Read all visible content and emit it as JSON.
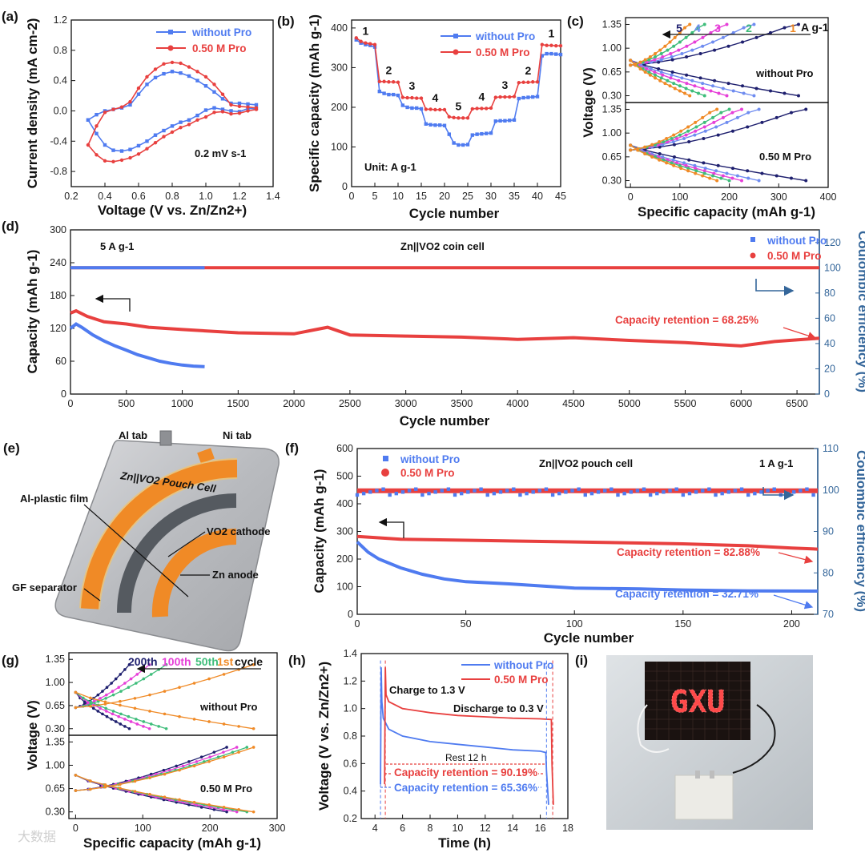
{
  "figure": {
    "panel_labels": [
      "(a)",
      "(b)",
      "(c)",
      "(d)",
      "(e)",
      "(f)",
      "(g)",
      "(h)",
      "(i)"
    ],
    "watermark": "大数据"
  },
  "chart_data": [
    {
      "id": "a",
      "type": "line",
      "title": "",
      "xlabel": "Voltage (V vs. Zn/Zn2+)",
      "ylabel": "Current density (mA cm-2)",
      "xlim": [
        0.2,
        1.4
      ],
      "ylim": [
        -1.0,
        1.2
      ],
      "xticks": [
        "0.2",
        "0.4",
        "0.6",
        "0.8",
        "1.0",
        "1.2",
        "1.4"
      ],
      "yticks": [
        "-0.8",
        "-0.4",
        "0.0",
        "0.4",
        "0.8",
        "1.2"
      ],
      "annotation": "0.2 mV s-1",
      "legend": [
        "without Pro",
        "0.50 M Pro"
      ],
      "series": [
        {
          "name": "without Pro",
          "color": "#4f7bf0",
          "x": [
            0.3,
            0.35,
            0.4,
            0.45,
            0.5,
            0.55,
            0.6,
            0.65,
            0.7,
            0.75,
            0.8,
            0.85,
            0.9,
            0.95,
            1.0,
            1.05,
            1.1,
            1.15,
            1.2,
            1.25,
            1.3,
            1.3,
            1.25,
            1.2,
            1.15,
            1.1,
            1.05,
            1.0,
            0.95,
            0.9,
            0.85,
            0.8,
            0.75,
            0.7,
            0.65,
            0.6,
            0.55,
            0.5,
            0.45,
            0.4,
            0.35,
            0.3
          ],
          "y": [
            -0.12,
            -0.05,
            0.0,
            0.02,
            0.04,
            0.08,
            0.22,
            0.35,
            0.44,
            0.49,
            0.52,
            0.5,
            0.46,
            0.4,
            0.33,
            0.25,
            0.16,
            0.1,
            0.1,
            0.09,
            0.08,
            0.03,
            0.03,
            -0.01,
            0.0,
            0.02,
            0.04,
            0.01,
            -0.06,
            -0.12,
            -0.15,
            -0.2,
            -0.26,
            -0.32,
            -0.4,
            -0.46,
            -0.51,
            -0.53,
            -0.52,
            -0.45,
            -0.3,
            -0.12
          ]
        },
        {
          "name": "0.50 M Pro",
          "color": "#e8403f",
          "x": [
            0.3,
            0.35,
            0.4,
            0.45,
            0.5,
            0.55,
            0.6,
            0.65,
            0.7,
            0.75,
            0.8,
            0.85,
            0.9,
            0.95,
            1.0,
            1.05,
            1.1,
            1.15,
            1.2,
            1.25,
            1.3,
            1.3,
            1.25,
            1.2,
            1.15,
            1.1,
            1.05,
            1.0,
            0.95,
            0.9,
            0.85,
            0.8,
            0.75,
            0.7,
            0.65,
            0.6,
            0.55,
            0.5,
            0.45,
            0.4,
            0.35,
            0.3
          ],
          "y": [
            -0.45,
            -0.2,
            -0.02,
            0.02,
            0.05,
            0.12,
            0.3,
            0.45,
            0.55,
            0.62,
            0.64,
            0.63,
            0.58,
            0.52,
            0.45,
            0.35,
            0.22,
            0.08,
            0.06,
            0.05,
            0.04,
            0.02,
            0.0,
            -0.03,
            -0.04,
            -0.01,
            -0.02,
            -0.08,
            -0.12,
            -0.18,
            -0.22,
            -0.28,
            -0.34,
            -0.42,
            -0.5,
            -0.57,
            -0.62,
            -0.65,
            -0.67,
            -0.66,
            -0.58,
            -0.45
          ]
        }
      ]
    },
    {
      "id": "b",
      "type": "line",
      "xlabel": "Cycle number",
      "ylabel": "Specific capacity (mAh g-1)",
      "xlim": [
        0,
        45
      ],
      "ylim": [
        0,
        420
      ],
      "xticks": [
        "0",
        "5",
        "10",
        "15",
        "20",
        "25",
        "30",
        "35",
        "40",
        "45"
      ],
      "yticks": [
        "0",
        "100",
        "200",
        "300",
        "400"
      ],
      "rate_labels": [
        "1",
        "2",
        "3",
        "4",
        "5",
        "4",
        "3",
        "2",
        "1"
      ],
      "annotation": "Unit: A g-1",
      "legend": [
        "without Pro",
        "0.50 M Pro"
      ],
      "series": [
        {
          "name": "without Pro",
          "color": "#4f7bf0",
          "x": [
            1,
            2,
            3,
            4,
            5,
            6,
            7,
            8,
            9,
            10,
            11,
            12,
            13,
            14,
            15,
            16,
            17,
            18,
            19,
            20,
            21,
            22,
            23,
            24,
            25,
            26,
            27,
            28,
            29,
            30,
            31,
            32,
            33,
            34,
            35,
            36,
            37,
            38,
            39,
            40,
            41,
            42,
            43,
            44,
            45
          ],
          "y": [
            370,
            362,
            358,
            356,
            352,
            240,
            235,
            232,
            232,
            230,
            205,
            200,
            198,
            198,
            196,
            158,
            156,
            155,
            155,
            154,
            132,
            110,
            105,
            105,
            106,
            130,
            132,
            133,
            134,
            135,
            165,
            166,
            166,
            167,
            168,
            222,
            224,
            225,
            226,
            227,
            330,
            335,
            335,
            334,
            333
          ]
        },
        {
          "name": "0.50 M Pro",
          "color": "#e8403f",
          "x": [
            1,
            2,
            3,
            4,
            5,
            6,
            7,
            8,
            9,
            10,
            11,
            12,
            13,
            14,
            15,
            16,
            17,
            18,
            19,
            20,
            21,
            22,
            23,
            24,
            25,
            26,
            27,
            28,
            29,
            30,
            31,
            32,
            33,
            34,
            35,
            36,
            37,
            38,
            39,
            40,
            41,
            42,
            43,
            44,
            45
          ],
          "y": [
            375,
            366,
            362,
            360,
            358,
            265,
            265,
            264,
            264,
            263,
            225,
            224,
            224,
            223,
            223,
            195,
            195,
            194,
            194,
            194,
            176,
            174,
            173,
            173,
            173,
            196,
            197,
            197,
            197,
            198,
            225,
            226,
            226,
            226,
            227,
            262,
            263,
            263,
            264,
            264,
            358,
            356,
            356,
            355,
            355
          ]
        }
      ]
    },
    {
      "id": "c",
      "type": "line",
      "xlabel": "Specific capacity (mAh g-1)",
      "ylabel": "Voltage (V)",
      "xlim": [
        -10,
        400
      ],
      "ylim": [
        0.2,
        1.45
      ],
      "xticks": [
        "0",
        "100",
        "200",
        "300",
        "400"
      ],
      "yticks": [
        "0.30",
        "0.65",
        "1.00",
        "1.35"
      ],
      "rate_labels": [
        "5",
        "4",
        "3",
        "2",
        "1"
      ],
      "rate_unit": "A g-1",
      "subpanel_labels": [
        "without Pro",
        "0.50 M Pro"
      ],
      "rate_colors": [
        "#1e1f6e",
        "#6f8cf0",
        "#e63fd8",
        "#3ebd7a",
        "#f08a26"
      ],
      "capacities_without_pro": [
        120,
        150,
        195,
        250,
        340
      ],
      "capacities_050M_pro": [
        175,
        200,
        225,
        260,
        355
      ]
    },
    {
      "id": "d",
      "type": "line",
      "xlabel": "Cycle number",
      "ylabel": "Capacity (mAh g-1)",
      "y2label": "Coulombic efficiency (%)",
      "xlim": [
        0,
        6700
      ],
      "ylim": [
        0,
        300
      ],
      "y2lim": [
        0,
        130
      ],
      "xticks": [
        "0",
        "500",
        "1000",
        "1500",
        "2000",
        "2500",
        "3000",
        "3500",
        "4000",
        "4500",
        "5000",
        "5500",
        "6000",
        "6500"
      ],
      "yticks": [
        "0",
        "60",
        "120",
        "180",
        "240",
        "300"
      ],
      "y2ticks": [
        "0",
        "20",
        "40",
        "60",
        "80",
        "100",
        "120"
      ],
      "rate": "5 A g-1",
      "cell": "Zn||VO2 coin cell",
      "retention_label": "Capacity retention = 68.25%",
      "legend": [
        "without Pro",
        "0.50 M Pro"
      ],
      "series": [
        {
          "name": "without Pro capacity",
          "color": "#4f7bf0",
          "x": [
            0,
            50,
            100,
            200,
            300,
            400,
            500,
            600,
            700,
            800,
            900,
            1000,
            1100,
            1200
          ],
          "y": [
            120,
            128,
            122,
            108,
            97,
            88,
            80,
            72,
            66,
            60,
            56,
            53,
            51,
            50
          ]
        },
        {
          "name": "0.50 M Pro capacity",
          "color": "#e8403f",
          "x": [
            0,
            50,
            150,
            300,
            500,
            700,
            1000,
            1500,
            2000,
            2300,
            2500,
            3000,
            3500,
            4000,
            4500,
            5000,
            5500,
            6000,
            6300,
            6700
          ],
          "y": [
            148,
            152,
            142,
            132,
            128,
            122,
            118,
            112,
            110,
            122,
            108,
            106,
            104,
            100,
            103,
            98,
            94,
            88,
            96,
            102
          ]
        },
        {
          "name": "without Pro CE",
          "color": "#4f7bf0",
          "x": [
            0,
            1200
          ],
          "y": [
            100,
            100
          ]
        },
        {
          "name": "0.50 M Pro CE",
          "color": "#e8403f",
          "x": [
            0,
            6700
          ],
          "y": [
            100,
            100
          ]
        }
      ]
    },
    {
      "id": "e",
      "type": "diagram",
      "labels": [
        "Al tab",
        "Ni tab",
        "Zn||VO2 Pouch Cell",
        "Al-plastic film",
        "VO2 cathode",
        "Zn anode",
        "GF separator"
      ]
    },
    {
      "id": "f",
      "type": "line",
      "xlabel": "Cycle number",
      "ylabel": "Capacity (mAh g-1)",
      "y2label": "Coulombic efficiency (%)",
      "xlim": [
        0,
        212
      ],
      "ylim": [
        0,
        600
      ],
      "y2lim": [
        70,
        110
      ],
      "xticks": [
        "0",
        "50",
        "100",
        "150",
        "200"
      ],
      "yticks": [
        "0",
        "100",
        "200",
        "300",
        "400",
        "500",
        "600"
      ],
      "y2ticks": [
        "70",
        "80",
        "90",
        "100",
        "110"
      ],
      "cell": "Zn||VO2 pouch cell",
      "rate": "1 A g-1",
      "retention_red": "Capacity retention = 82.88%",
      "retention_blue": "Capacity retention = 32.71%",
      "legend": [
        "without Pro",
        "0.50 M Pro"
      ],
      "series": [
        {
          "name": "without Pro capacity",
          "color": "#4f7bf0",
          "x": [
            0,
            5,
            10,
            20,
            30,
            40,
            50,
            70,
            100,
            130,
            150,
            180,
            212
          ],
          "y": [
            262,
            225,
            200,
            168,
            145,
            128,
            118,
            110,
            95,
            92,
            88,
            85,
            84
          ]
        },
        {
          "name": "0.50 M Pro capacity",
          "color": "#e8403f",
          "x": [
            0,
            20,
            50,
            100,
            130,
            150,
            180,
            200,
            212
          ],
          "y": [
            282,
            272,
            268,
            262,
            258,
            255,
            248,
            240,
            236
          ]
        },
        {
          "name": "without Pro CE",
          "color": "#4f7bf0",
          "x": [
            0,
            212
          ],
          "y": [
            99.5,
            99.5
          ]
        },
        {
          "name": "0.50 M Pro CE",
          "color": "#e8403f",
          "x": [
            0,
            212
          ],
          "y": [
            99.8,
            99.8
          ]
        }
      ]
    },
    {
      "id": "g",
      "type": "line",
      "xlabel": "Specific capacity (mAh g-1)",
      "ylabel": "Voltage (V)",
      "xlim": [
        -10,
        300
      ],
      "ylim": [
        0.2,
        1.45
      ],
      "xticks": [
        "0",
        "100",
        "200",
        "300"
      ],
      "yticks": [
        "0.30",
        "0.65",
        "1.00",
        "1.35"
      ],
      "cycle_labels": [
        "200th",
        "100th",
        "50th",
        "1st",
        "cycle"
      ],
      "cycle_colors": [
        "#1e1f6e",
        "#e63fd8",
        "#3ebd7a",
        "#f08a26"
      ],
      "subpanel_labels": [
        "without Pro",
        "0.50 M Pro"
      ],
      "capacities_without_pro": [
        80,
        110,
        135,
        265
      ],
      "capacities_050M_pro": [
        225,
        240,
        255,
        265
      ]
    },
    {
      "id": "h",
      "type": "line",
      "xlabel": "Time (h)",
      "ylabel": "Voltage (V vs. Zn/Zn2+)",
      "xlim": [
        3,
        18
      ],
      "ylim": [
        0.2,
        1.4
      ],
      "xticks": [
        "4",
        "6",
        "8",
        "10",
        "12",
        "14",
        "16",
        "18"
      ],
      "yticks": [
        "0.2",
        "0.4",
        "0.6",
        "0.8",
        "1.0",
        "1.2",
        "1.4"
      ],
      "annotations": [
        "Charge to 1.3 V",
        "Discharge to 0.3 V",
        "Rest 12 h",
        "Capacity retention = 90.19%",
        "Capacity retention = 65.36%"
      ],
      "legend": [
        "without Pro",
        "0.50 M Pro"
      ],
      "series": [
        {
          "name": "without Pro",
          "color": "#4f7bf0",
          "x": [
            4.4,
            4.45,
            4.5,
            4.6,
            5,
            6,
            8,
            10,
            12,
            14,
            16,
            16.4,
            16.45,
            16.6
          ],
          "y": [
            0.45,
            1.3,
            1.05,
            0.93,
            0.85,
            0.8,
            0.76,
            0.74,
            0.72,
            0.7,
            0.69,
            0.68,
            0.55,
            0.3
          ]
        },
        {
          "name": "0.50 M Pro",
          "color": "#e8403f",
          "x": [
            4.7,
            4.75,
            4.8,
            5,
            6,
            8,
            10,
            12,
            14,
            16,
            16.8,
            16.85,
            16.95
          ],
          "y": [
            0.45,
            1.3,
            1.1,
            1.05,
            1.0,
            0.97,
            0.95,
            0.94,
            0.93,
            0.925,
            0.92,
            0.6,
            0.3
          ]
        }
      ]
    },
    {
      "id": "i",
      "type": "photo",
      "display_text": "GXU"
    }
  ]
}
